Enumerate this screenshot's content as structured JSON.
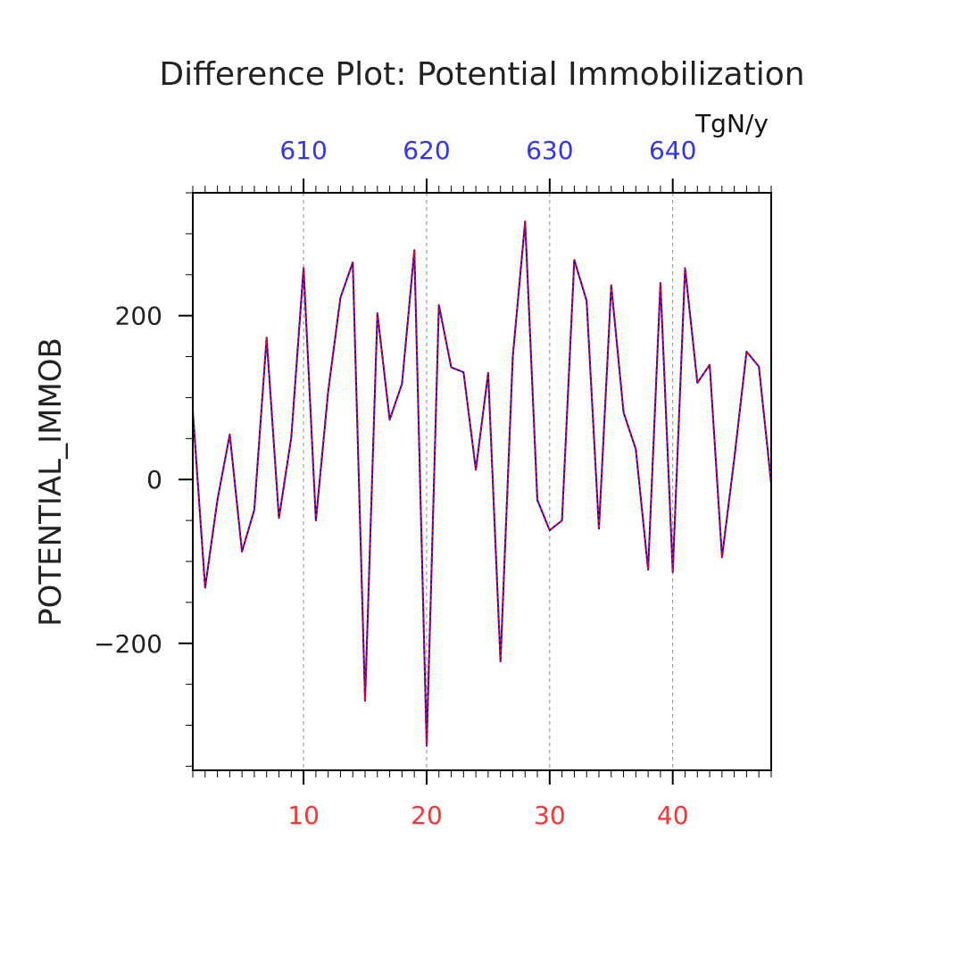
{
  "chart_data": {
    "type": "line",
    "title": "Difference Plot: Potential Immobilization",
    "ylabel": "POTENTIAL_IMMOB",
    "units": "TgN/y",
    "xlim": [
      1,
      48
    ],
    "ylim": [
      -355,
      350
    ],
    "y_ticks": [
      {
        "value": -200,
        "label": "−200"
      },
      {
        "value": 0,
        "label": "0"
      },
      {
        "value": 200,
        "label": "200"
      }
    ],
    "bottom_ticks": [
      {
        "value": 10,
        "label": "10"
      },
      {
        "value": 20,
        "label": "20"
      },
      {
        "value": 30,
        "label": "30"
      },
      {
        "value": 40,
        "label": "40"
      }
    ],
    "top_ticks": [
      {
        "value": 10,
        "label": "610"
      },
      {
        "value": 20,
        "label": "620"
      },
      {
        "value": 30,
        "label": "630"
      },
      {
        "value": 40,
        "label": "640"
      }
    ],
    "gridlines_x": [
      10,
      20,
      30,
      40
    ],
    "colors": {
      "bottom_axis_labels": "#ff3333",
      "top_axis_labels": "#3333ff",
      "line_solid": "#0000ff",
      "line_dashed": "#ff0000",
      "grid": "#888888"
    },
    "x": [
      1,
      2,
      3,
      4,
      5,
      6,
      7,
      8,
      9,
      10,
      11,
      12,
      13,
      14,
      15,
      16,
      17,
      18,
      19,
      20,
      21,
      22,
      23,
      24,
      25,
      26,
      27,
      28,
      29,
      30,
      31,
      32,
      33,
      34,
      35,
      36,
      37,
      38,
      39,
      40,
      41,
      42,
      43,
      44,
      45,
      46,
      47,
      48
    ],
    "series": [
      {
        "name": "POTENTIAL_IMMOB",
        "values": [
          84,
          -132,
          -25,
          55,
          -88,
          -37,
          173,
          -47,
          51,
          258,
          -50,
          108,
          222,
          265,
          -270,
          203,
          73,
          117,
          280,
          -325,
          213,
          137,
          131,
          12,
          130,
          -222,
          150,
          315,
          -25,
          -62,
          -50,
          268,
          218,
          -60,
          237,
          82,
          37,
          -110,
          240,
          -113,
          258,
          118,
          140,
          -95,
          25,
          156,
          138,
          -5
        ]
      }
    ]
  }
}
